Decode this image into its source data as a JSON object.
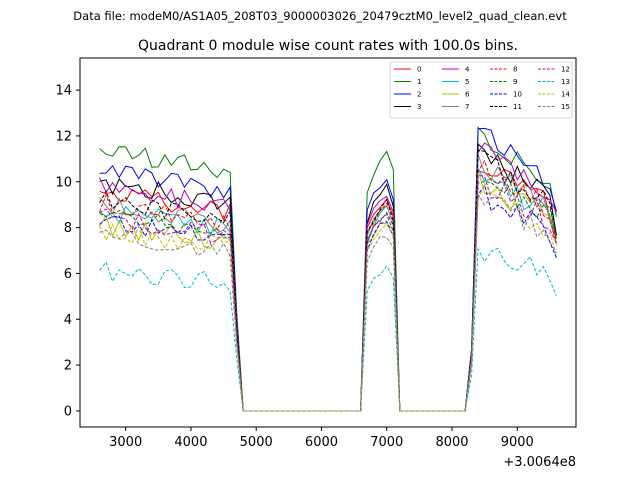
{
  "chart_data": {
    "type": "line",
    "suptitle": "Data file: modeM0/AS1A05_208T03_9000003026_20479cztM0_level2_quad_clean.evt",
    "title": "Quadrant 0 module wise count rates with 100.0s bins.",
    "xlabel": "",
    "ylabel": "",
    "x_offset_label": "+3.0064e8",
    "xlim": [
      2300,
      9900
    ],
    "ylim": [
      -0.7,
      15.4
    ],
    "xticks": [
      3000,
      4000,
      5000,
      6000,
      7000,
      8000,
      9000
    ],
    "xtick_labels": [
      "3000",
      "4000",
      "5000",
      "6000",
      "7000",
      "8000",
      "9000"
    ],
    "yticks": [
      0,
      2,
      4,
      6,
      8,
      10,
      12,
      14
    ],
    "ytick_labels": [
      "0",
      "2",
      "4",
      "6",
      "8",
      "10",
      "12",
      "14"
    ],
    "legend_position": "top-right",
    "series": [
      {
        "name": "0",
        "color": "#ff0000",
        "dash": false,
        "level1": 9.2,
        "level2": 9.0,
        "level3": 11.0
      },
      {
        "name": "1",
        "color": "#008000",
        "dash": false,
        "level1": 11.0,
        "level2": 11.0,
        "level3": 12.2
      },
      {
        "name": "2",
        "color": "#0000ff",
        "dash": false,
        "level1": 10.2,
        "level2": 9.9,
        "level3": 12.4
      },
      {
        "name": "3",
        "color": "#000000",
        "dash": false,
        "level1": 9.6,
        "level2": 9.5,
        "level3": 11.5
      },
      {
        "name": "4",
        "color": "#bf00bf",
        "dash": false,
        "level1": 9.4,
        "level2": 9.2,
        "level3": 11.8
      },
      {
        "name": "5",
        "color": "#00bfbf",
        "dash": false,
        "level1": 8.4,
        "level2": 8.6,
        "level3": 10.6
      },
      {
        "name": "6",
        "color": "#bfbf00",
        "dash": false,
        "level1": 7.8,
        "level2": 8.2,
        "level3": 10.2
      },
      {
        "name": "7",
        "color": "#808080",
        "dash": false,
        "level1": 8.6,
        "level2": 8.7,
        "level3": 10.8
      },
      {
        "name": "8",
        "color": "#ff0000",
        "dash": true,
        "level1": 8.7,
        "level2": 8.8,
        "level3": 10.9
      },
      {
        "name": "9",
        "color": "#008000",
        "dash": true,
        "level1": 8.3,
        "level2": 8.4,
        "level3": 10.5
      },
      {
        "name": "10",
        "color": "#0000ff",
        "dash": true,
        "level1": 7.9,
        "level2": 8.1,
        "level3": 9.6
      },
      {
        "name": "11",
        "color": "#000000",
        "dash": true,
        "level1": 8.9,
        "level2": 8.9,
        "level3": 11.2
      },
      {
        "name": "12",
        "color": "#bf00bf",
        "dash": true,
        "level1": 8.1,
        "level2": 8.3,
        "level3": 10.3
      },
      {
        "name": "13",
        "color": "#00bfbf",
        "dash": true,
        "level1": 5.9,
        "level2": 6.0,
        "level3": 7.2
      },
      {
        "name": "14",
        "color": "#bfbf00",
        "dash": true,
        "level1": 7.6,
        "level2": 7.9,
        "level3": 9.8
      },
      {
        "name": "15",
        "color": "#808080",
        "dash": true,
        "level1": 7.4,
        "level2": 7.6,
        "level3": 9.5
      }
    ],
    "time_bins": {
      "active1": [
        2600,
        4700
      ],
      "gap1": [
        4800,
        6600
      ],
      "active2": [
        6700,
        7100
      ],
      "gap2": [
        7200,
        8200
      ],
      "active3": [
        8300,
        9600
      ],
      "step": 100
    }
  }
}
